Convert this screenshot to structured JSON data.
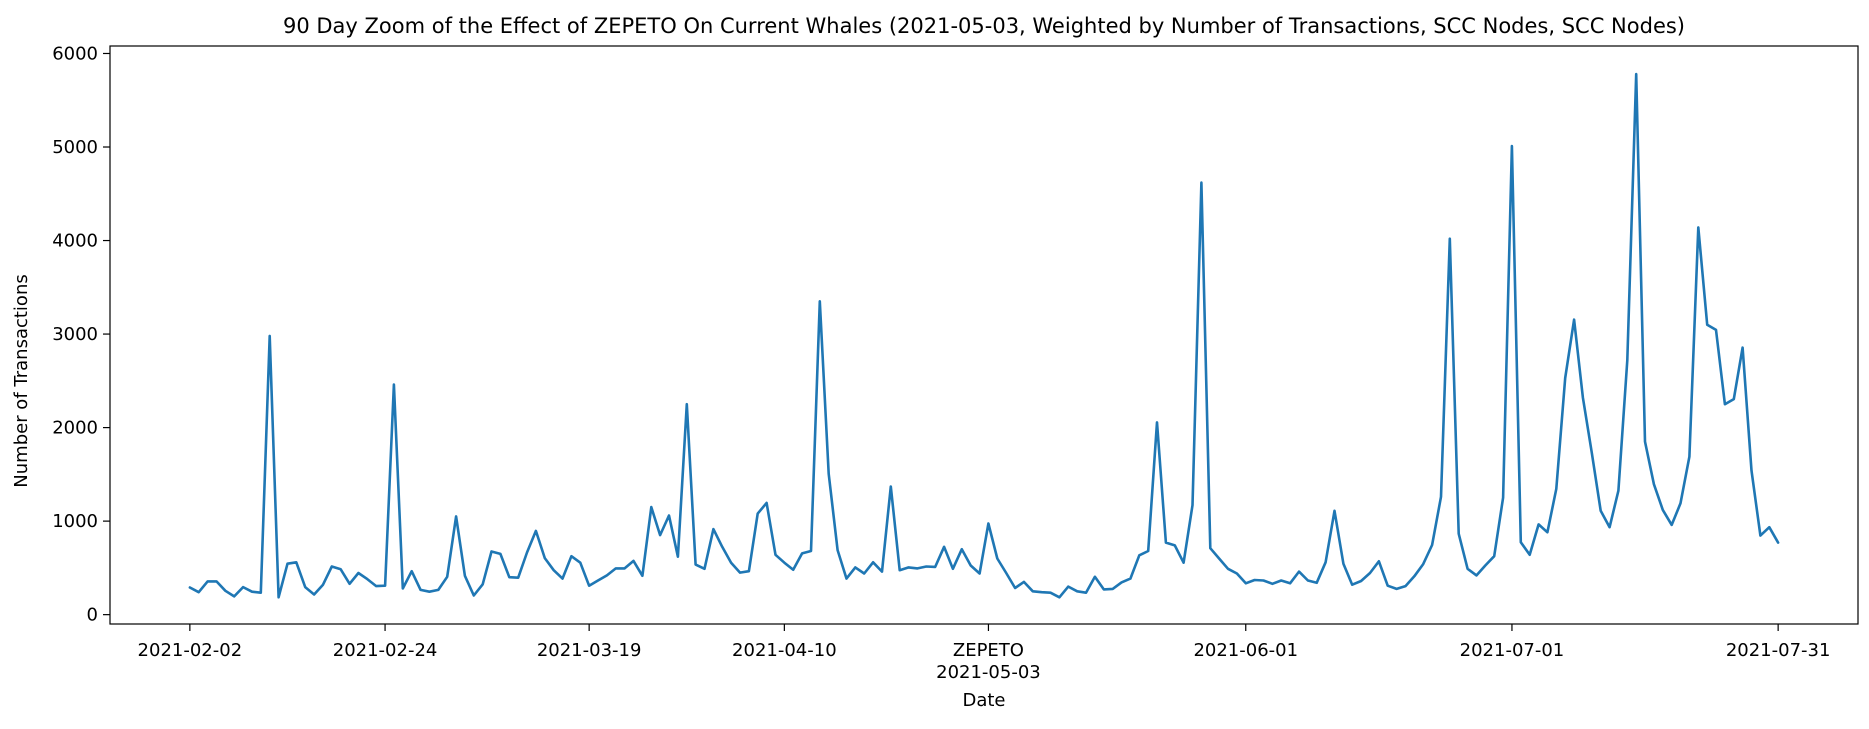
{
  "colors": {
    "line": "#1f77b4",
    "axes": "#000000",
    "background": "#ffffff"
  },
  "chart_data": {
    "type": "line",
    "title": "90 Day Zoom of the Effect of ZEPETO On Current Whales (2021-05-03, Weighted by Number of Transactions, SCC Nodes, SCC Nodes)",
    "xlabel": "Date",
    "ylabel": "Number of Transactions",
    "x_start": "2021-02-02",
    "x_end": "2021-07-31",
    "xlim": [
      "2021-01-24",
      "2021-08-09"
    ],
    "ylim": [
      -100,
      6080
    ],
    "grid": false,
    "legend": "none",
    "x_ticks": [
      {
        "date": "2021-02-02",
        "label": "2021-02-02"
      },
      {
        "date": "2021-02-24",
        "label": "2021-02-24"
      },
      {
        "date": "2021-03-19",
        "label": "2021-03-19"
      },
      {
        "date": "2021-04-10",
        "label": "2021-04-10"
      },
      {
        "date": "2021-05-03",
        "label": "2021-05-03"
      },
      {
        "date": "2021-06-01",
        "label": "2021-06-01"
      },
      {
        "date": "2021-07-01",
        "label": "2021-07-01"
      },
      {
        "date": "2021-07-31",
        "label": "2021-07-31"
      }
    ],
    "y_ticks": [
      0,
      1000,
      2000,
      3000,
      4000,
      5000,
      6000
    ],
    "annotations": [
      {
        "date": "2021-05-03",
        "text": "ZEPETO"
      }
    ],
    "series": [
      {
        "x": [
          "2021-02-02",
          "2021-02-03",
          "2021-02-04",
          "2021-02-05",
          "2021-02-06",
          "2021-02-07",
          "2021-02-08",
          "2021-02-09",
          "2021-02-10",
          "2021-02-11",
          "2021-02-12",
          "2021-02-13",
          "2021-02-14",
          "2021-02-15",
          "2021-02-16",
          "2021-02-17",
          "2021-02-18",
          "2021-02-19",
          "2021-02-20",
          "2021-02-21",
          "2021-02-22",
          "2021-02-23",
          "2021-02-24",
          "2021-02-25",
          "2021-02-26",
          "2021-02-27",
          "2021-02-28",
          "2021-03-01",
          "2021-03-02",
          "2021-03-03",
          "2021-03-04",
          "2021-03-05",
          "2021-03-06",
          "2021-03-07",
          "2021-03-08",
          "2021-03-09",
          "2021-03-10",
          "2021-03-11",
          "2021-03-12",
          "2021-03-13",
          "2021-03-14",
          "2021-03-15",
          "2021-03-16",
          "2021-03-17",
          "2021-03-18",
          "2021-03-19",
          "2021-03-20",
          "2021-03-21",
          "2021-03-22",
          "2021-03-23",
          "2021-03-24",
          "2021-03-25",
          "2021-03-26",
          "2021-03-27",
          "2021-03-28",
          "2021-03-29",
          "2021-03-30",
          "2021-03-31",
          "2021-04-01",
          "2021-04-02",
          "2021-04-03",
          "2021-04-04",
          "2021-04-05",
          "2021-04-06",
          "2021-04-07",
          "2021-04-08",
          "2021-04-09",
          "2021-04-10",
          "2021-04-11",
          "2021-04-12",
          "2021-04-13",
          "2021-04-14",
          "2021-04-15",
          "2021-04-16",
          "2021-04-17",
          "2021-04-18",
          "2021-04-19",
          "2021-04-20",
          "2021-04-21",
          "2021-04-22",
          "2021-04-23",
          "2021-04-24",
          "2021-04-25",
          "2021-04-26",
          "2021-04-27",
          "2021-04-28",
          "2021-04-29",
          "2021-04-30",
          "2021-05-01",
          "2021-05-02",
          "2021-05-03",
          "2021-05-04",
          "2021-05-05",
          "2021-05-06",
          "2021-05-07",
          "2021-05-08",
          "2021-05-09",
          "2021-05-10",
          "2021-05-11",
          "2021-05-12",
          "2021-05-13",
          "2021-05-14",
          "2021-05-15",
          "2021-05-16",
          "2021-05-17",
          "2021-05-18",
          "2021-05-19",
          "2021-05-20",
          "2021-05-21",
          "2021-05-22",
          "2021-05-23",
          "2021-05-24",
          "2021-05-25",
          "2021-05-26",
          "2021-05-27",
          "2021-05-28",
          "2021-05-29",
          "2021-05-30",
          "2021-05-31",
          "2021-06-01",
          "2021-06-02",
          "2021-06-03",
          "2021-06-04",
          "2021-06-05",
          "2021-06-06",
          "2021-06-07",
          "2021-06-08",
          "2021-06-09",
          "2021-06-10",
          "2021-06-11",
          "2021-06-12",
          "2021-06-13",
          "2021-06-14",
          "2021-06-15",
          "2021-06-16",
          "2021-06-17",
          "2021-06-18",
          "2021-06-19",
          "2021-06-20",
          "2021-06-21",
          "2021-06-22",
          "2021-06-23",
          "2021-06-24",
          "2021-06-25",
          "2021-06-26",
          "2021-06-27",
          "2021-06-28",
          "2021-06-29",
          "2021-06-30",
          "2021-07-01",
          "2021-07-02",
          "2021-07-03",
          "2021-07-04",
          "2021-07-05",
          "2021-07-06",
          "2021-07-07",
          "2021-07-08",
          "2021-07-09",
          "2021-07-10",
          "2021-07-11",
          "2021-07-12",
          "2021-07-13",
          "2021-07-14",
          "2021-07-15",
          "2021-07-16",
          "2021-07-17",
          "2021-07-18",
          "2021-07-19",
          "2021-07-20",
          "2021-07-21",
          "2021-07-22",
          "2021-07-23",
          "2021-07-24",
          "2021-07-25",
          "2021-07-26",
          "2021-07-27",
          "2021-07-28",
          "2021-07-29",
          "2021-07-30",
          "2021-07-31"
        ],
        "values": [
          290,
          240,
          355,
          355,
          255,
          195,
          295,
          245,
          235,
          2980,
          185,
          545,
          560,
          295,
          215,
          320,
          515,
          485,
          330,
          445,
          380,
          305,
          310,
          2460,
          280,
          465,
          265,
          245,
          265,
          405,
          1050,
          415,
          205,
          325,
          675,
          650,
          400,
          395,
          665,
          895,
          605,
          475,
          385,
          625,
          555,
          310,
          365,
          420,
          495,
          495,
          575,
          415,
          1150,
          850,
          1060,
          620,
          2250,
          535,
          490,
          915,
          725,
          555,
          450,
          465,
          1080,
          1195,
          640,
          555,
          480,
          655,
          680,
          3350,
          1505,
          690,
          385,
          505,
          440,
          560,
          460,
          1370,
          475,
          505,
          495,
          515,
          510,
          725,
          490,
          700,
          525,
          440,
          975,
          600,
          445,
          285,
          350,
          250,
          240,
          235,
          185,
          300,
          250,
          235,
          405,
          270,
          275,
          345,
          385,
          635,
          680,
          2055,
          770,
          740,
          555,
          1170,
          4620,
          710,
          600,
          490,
          440,
          335,
          370,
          365,
          330,
          365,
          335,
          460,
          365,
          340,
          560,
          1110,
          545,
          320,
          360,
          445,
          570,
          310,
          275,
          305,
          410,
          540,
          745,
          1260,
          4020,
          865,
          490,
          420,
          525,
          625,
          1250,
          5010,
          775,
          640,
          965,
          880,
          1345,
          2530,
          3155,
          2320,
          1730,
          1110,
          935,
          1325,
          2720,
          5780,
          1850,
          1395,
          1120,
          960,
          1190,
          1690,
          4140,
          3100,
          3045,
          2250,
          2305,
          2855,
          1540,
          845,
          935,
          770
        ]
      }
    ]
  }
}
